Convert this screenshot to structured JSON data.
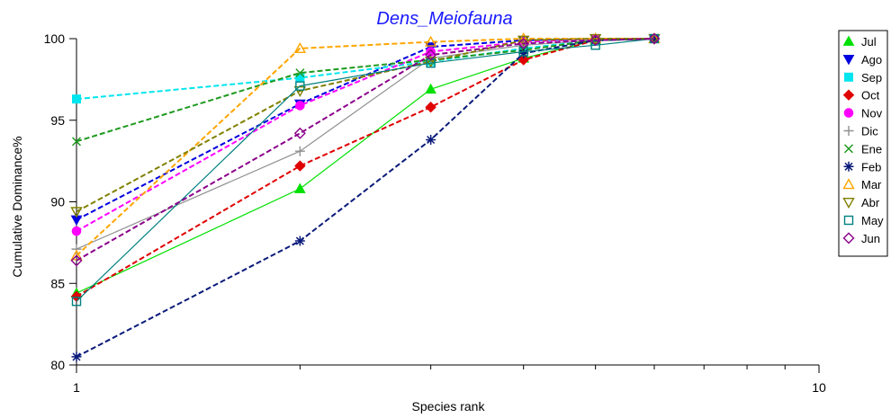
{
  "chart_data": {
    "type": "line",
    "title": "Dens_Meiofauna",
    "xlabel": "Species rank",
    "ylabel": "Cumulative Dominance%",
    "x_scale": "log",
    "xlim": [
      1,
      10
    ],
    "ylim": [
      80,
      100
    ],
    "x_ticks": [
      1,
      10
    ],
    "y_ticks": [
      80,
      85,
      90,
      95,
      100
    ],
    "grid": false,
    "legend_position": "right",
    "series": [
      {
        "name": "Jul",
        "color": "#00e000",
        "marker": "triangle-up",
        "dash": "solid",
        "x": [
          1,
          2,
          3,
          4,
          5,
          6
        ],
        "y": [
          84.4,
          90.8,
          96.9,
          98.8,
          99.9,
          100
        ]
      },
      {
        "name": "Ago",
        "color": "#0000e0",
        "marker": "triangle-down",
        "dash": "dashed",
        "x": [
          1,
          2,
          3,
          4,
          5,
          6
        ],
        "y": [
          88.9,
          96,
          99.5,
          99.9,
          100,
          100
        ]
      },
      {
        "name": "Sep",
        "color": "#00e5ee",
        "marker": "square",
        "dash": "dashed",
        "x": [
          1,
          2,
          3,
          4,
          5,
          6
        ],
        "y": [
          96.3,
          97.6,
          98.6,
          99.4,
          99.9,
          100
        ]
      },
      {
        "name": "Oct",
        "color": "#e00000",
        "marker": "diamond",
        "dash": "dashed",
        "x": [
          1,
          2,
          3,
          4,
          5,
          6
        ],
        "y": [
          84.2,
          92.2,
          95.8,
          98.7,
          99.9,
          100
        ]
      },
      {
        "name": "Nov",
        "color": "#ff00ff",
        "marker": "circle",
        "dash": "dashed",
        "x": [
          1,
          2,
          3,
          4,
          5,
          6
        ],
        "y": [
          88.2,
          95.9,
          99.2,
          99.8,
          100,
          100
        ]
      },
      {
        "name": "Dic",
        "color": "#909090",
        "marker": "plus",
        "dash": "solid",
        "x": [
          1,
          2,
          3,
          4,
          5,
          6
        ],
        "y": [
          87.1,
          93.1,
          98.8,
          99.6,
          99.9,
          100
        ]
      },
      {
        "name": "Ene",
        "color": "#1e9a1e",
        "marker": "cross",
        "dash": "dashed",
        "x": [
          1,
          2,
          3,
          4,
          5,
          6
        ],
        "y": [
          93.7,
          97.9,
          98.7,
          99.3,
          99.9,
          100
        ]
      },
      {
        "name": "Feb",
        "color": "#0a1a7a",
        "marker": "asterisk",
        "dash": "dashed",
        "x": [
          1,
          2,
          3,
          4,
          5,
          6
        ],
        "y": [
          80.5,
          87.6,
          93.8,
          99.1,
          99.9,
          100
        ]
      },
      {
        "name": "Mar",
        "color": "#ffa500",
        "marker": "triangle-up-open",
        "dash": "dashed",
        "x": [
          1,
          2,
          3,
          4,
          5,
          6
        ],
        "y": [
          86.7,
          99.4,
          99.8,
          100,
          100,
          100
        ]
      },
      {
        "name": "Abr",
        "color": "#808000",
        "marker": "triangle-down-open",
        "dash": "dashed",
        "x": [
          1,
          2,
          3,
          4,
          5,
          6
        ],
        "y": [
          89.4,
          96.8,
          98.6,
          99.9,
          100,
          100
        ]
      },
      {
        "name": "May",
        "color": "#008080",
        "marker": "square-open",
        "dash": "solid",
        "x": [
          1,
          2,
          3,
          4,
          5,
          6
        ],
        "y": [
          83.9,
          97.1,
          98.5,
          99.2,
          99.6,
          100
        ]
      },
      {
        "name": "Jun",
        "color": "#8b008b",
        "marker": "diamond-open",
        "dash": "dashed",
        "x": [
          1,
          2,
          3,
          4,
          5,
          6
        ],
        "y": [
          86.4,
          94.2,
          99,
          99.7,
          99.9,
          100
        ]
      }
    ]
  }
}
